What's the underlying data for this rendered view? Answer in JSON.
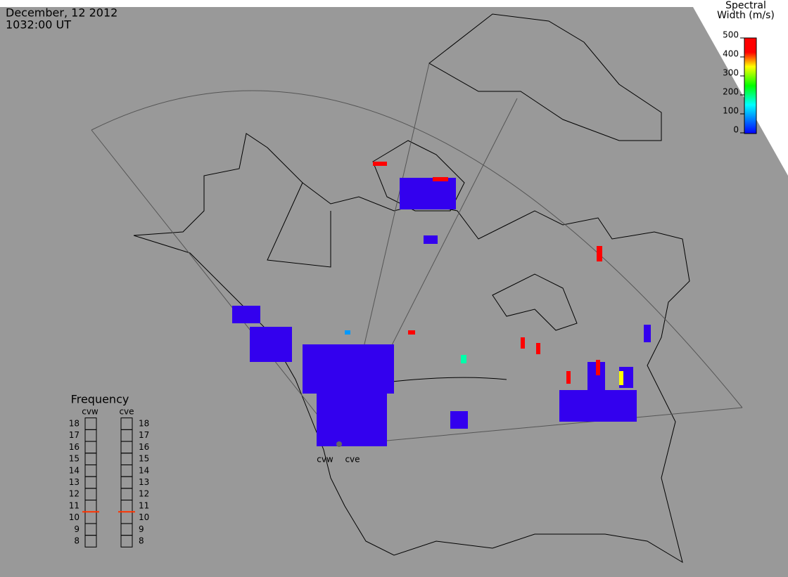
{
  "header": {
    "date": "December, 12 2012",
    "time": "1032:00 UT"
  },
  "colorbar": {
    "title": [
      "Spectral",
      "Width (m/s)"
    ],
    "range": [
      0,
      500
    ],
    "ticks": [
      0,
      100,
      200,
      300,
      400,
      500
    ]
  },
  "frequency": {
    "title": "Frequency",
    "range": [
      8,
      18
    ],
    "ticks": [
      8,
      9,
      10,
      11,
      12,
      13,
      14,
      15,
      16,
      17,
      18
    ],
    "radars": [
      {
        "name": "cvw",
        "value": 10.5
      },
      {
        "name": "cve",
        "value": 10.5
      }
    ]
  },
  "stations": [
    "cvw",
    "cve"
  ]
}
